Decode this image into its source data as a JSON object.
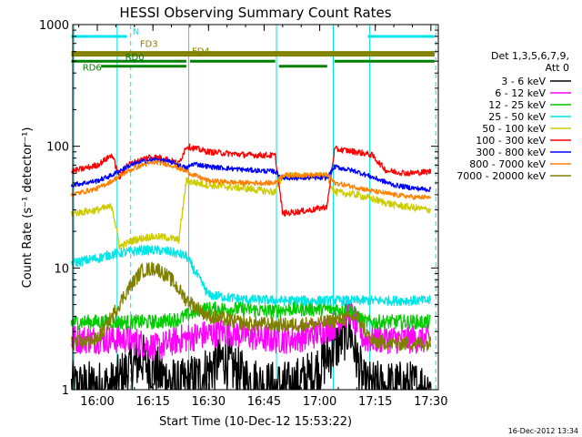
{
  "chart_data": {
    "type": "line",
    "title": "HESSI Observing Summary Count Rates",
    "xlabel": "Start Time (10-Dec-12 15:53:22)",
    "ylabel": "Count Rate (s⁻¹ detector⁻¹)",
    "yscale": "log",
    "ylim": [
      1,
      1000
    ],
    "xlim": [
      "15:53:22",
      "17:32:00"
    ],
    "x_ticks": [
      "16:00",
      "16:15",
      "16:30",
      "16:45",
      "17:00",
      "17:15",
      "17:30"
    ],
    "y_ticks": [
      "1",
      "10",
      "100",
      "1000"
    ],
    "timestamp": "16-Dec-2012 13:34",
    "legend": {
      "header_line1": "Det 1,3,5,6,7,9,",
      "header_line2": "Att 0",
      "placement": "right"
    },
    "series": [
      {
        "name": "3 - 6 keV",
        "color": "#000000",
        "x": [
          "15:53",
          "16:04",
          "16:08",
          "16:12",
          "16:16",
          "16:22",
          "16:28",
          "16:34",
          "16:40",
          "16:46",
          "16:52",
          "16:58",
          "17:04",
          "17:08",
          "17:12",
          "17:18",
          "17:24",
          "17:30"
        ],
        "y": [
          1.05,
          1.05,
          1.4,
          1.8,
          1.4,
          1.05,
          1.3,
          1.8,
          1.2,
          1.05,
          1.05,
          1.3,
          2.2,
          3.2,
          1.05,
          1.05,
          1.05,
          1.05
        ]
      },
      {
        "name": "6 - 12 keV",
        "color": "#ff00ff",
        "x": [
          "15:53",
          "16:04",
          "16:08",
          "16:12",
          "16:16",
          "16:22",
          "16:28",
          "16:34",
          "16:40",
          "16:46",
          "16:52",
          "16:58",
          "17:04",
          "17:08",
          "17:12",
          "17:18",
          "17:24",
          "17:30"
        ],
        "y": [
          2.6,
          2.6,
          2.6,
          2.4,
          2.2,
          2.6,
          2.8,
          3.0,
          2.8,
          2.6,
          2.6,
          2.8,
          3.4,
          4.5,
          2.6,
          2.6,
          2.6,
          2.6
        ]
      },
      {
        "name": "12 - 25 keV",
        "color": "#00cc00",
        "x": [
          "15:53",
          "16:04",
          "16:08",
          "16:12",
          "16:16",
          "16:22",
          "16:28",
          "16:34",
          "16:40",
          "16:46",
          "16:52",
          "16:58",
          "17:04",
          "17:08",
          "17:12",
          "17:18",
          "17:24",
          "17:30"
        ],
        "y": [
          3.6,
          3.6,
          3.6,
          3.6,
          3.6,
          3.8,
          4.6,
          4.6,
          4.6,
          4.4,
          4.6,
          4.6,
          4.6,
          4.6,
          3.6,
          3.6,
          3.6,
          3.6
        ]
      },
      {
        "name": "25 - 50 keV",
        "color": "#00e5e5",
        "x": [
          "15:53",
          "16:00",
          "16:04",
          "16:08",
          "16:12",
          "16:16",
          "16:20",
          "16:24",
          "16:30",
          "16:40",
          "16:50",
          "17:00",
          "17:10",
          "17:20",
          "17:30"
        ],
        "y": [
          11,
          12,
          13,
          13.5,
          14,
          14,
          13.5,
          12.5,
          6,
          5.5,
          5.4,
          5.4,
          5.4,
          5.4,
          5.4
        ]
      },
      {
        "name": "50 - 100 keV",
        "color": "#cccc00",
        "x": [
          "15:53",
          "16:00",
          "16:04",
          "16:06",
          "16:10",
          "16:14",
          "16:18",
          "16:22",
          "16:24",
          "16:30",
          "16:40",
          "16:48",
          "16:50",
          "16:58",
          "17:02",
          "17:04",
          "17:10",
          "17:14",
          "17:20",
          "17:26",
          "17:30"
        ],
        "y": [
          28,
          30,
          32,
          15,
          17,
          18,
          18,
          17,
          52,
          48,
          45,
          42,
          57,
          57,
          57,
          42,
          40,
          37,
          33,
          31,
          30
        ]
      },
      {
        "name": "100 - 300 keV",
        "color": "#ff0000",
        "x": [
          "15:53",
          "16:00",
          "16:04",
          "16:06",
          "16:08",
          "16:14",
          "16:18",
          "16:22",
          "16:24",
          "16:30",
          "16:40",
          "16:48",
          "16:50",
          "16:58",
          "17:02",
          "17:04",
          "17:10",
          "17:14",
          "17:18",
          "17:24",
          "17:30"
        ],
        "y": [
          62,
          70,
          85,
          55,
          70,
          82,
          80,
          72,
          100,
          90,
          85,
          84,
          28,
          30,
          32,
          95,
          90,
          85,
          63,
          60,
          62
        ]
      },
      {
        "name": "300 - 800 keV",
        "color": "#0000ff",
        "x": [
          "15:53",
          "16:00",
          "16:04",
          "16:08",
          "16:12",
          "16:16",
          "16:20",
          "16:24",
          "16:26",
          "16:30",
          "16:40",
          "16:48",
          "16:50",
          "16:58",
          "17:02",
          "17:04",
          "17:10",
          "17:14",
          "17:20",
          "17:26",
          "17:30"
        ],
        "y": [
          48,
          52,
          58,
          68,
          75,
          78,
          74,
          66,
          72,
          68,
          64,
          62,
          55,
          55,
          55,
          68,
          62,
          56,
          48,
          45,
          44
        ]
      },
      {
        "name": "800 - 7000 keV",
        "color": "#ff8000",
        "x": [
          "15:53",
          "16:00",
          "16:04",
          "16:08",
          "16:12",
          "16:16",
          "16:20",
          "16:24",
          "16:26",
          "16:30",
          "16:40",
          "16:48",
          "16:50",
          "16:58",
          "17:02",
          "17:04",
          "17:10",
          "17:14",
          "17:20",
          "17:26",
          "17:30"
        ],
        "y": [
          40,
          45,
          52,
          62,
          70,
          74,
          70,
          62,
          58,
          52,
          50,
          50,
          58,
          58,
          58,
          50,
          46,
          43,
          40,
          38,
          38
        ]
      },
      {
        "name": "7000 - 20000 keV",
        "color": "#808000",
        "x": [
          "15:53",
          "16:00",
          "16:04",
          "16:08",
          "16:12",
          "16:16",
          "16:20",
          "16:24",
          "16:30",
          "16:40",
          "16:50",
          "17:00",
          "17:10",
          "17:14",
          "17:20",
          "17:30"
        ],
        "y": [
          2.4,
          2.6,
          4.0,
          6.5,
          9.5,
          10,
          8,
          5.5,
          4,
          3.5,
          3.4,
          3.5,
          4,
          2.5,
          2.4,
          2.4
        ]
      }
    ],
    "vlines_solid": [
      "15:53:40",
      "16:05:20",
      "16:24:40",
      "16:48:20",
      "17:03:40",
      "17:13:30"
    ],
    "vlines_dashed": [
      "16:09:00",
      "17:31:20"
    ],
    "flag_bars": [
      {
        "label": "N",
        "color": "#00e5e5",
        "level": 800,
        "segments": [
          [
            "15:53",
            "16:08"
          ],
          [
            "17:13",
            "17:31"
          ]
        ]
      },
      {
        "label": "FD3",
        "color": "#808000",
        "level": 590,
        "segments": [
          [
            "15:53",
            "17:31"
          ]
        ]
      },
      {
        "label": "FD4",
        "color": "#808000",
        "level": 560,
        "segments": [
          [
            "15:53",
            "17:31"
          ]
        ]
      },
      {
        "label": "RD0",
        "color": "#008000",
        "level": 500,
        "segments": [
          [
            "15:53",
            "16:24"
          ],
          [
            "16:25",
            "16:48"
          ],
          [
            "17:04",
            "17:31"
          ]
        ]
      },
      {
        "label": "RD6",
        "color": "#008000",
        "level": 455,
        "segments": [
          [
            "16:01",
            "16:24"
          ],
          [
            "16:49",
            "17:02"
          ]
        ]
      }
    ]
  }
}
